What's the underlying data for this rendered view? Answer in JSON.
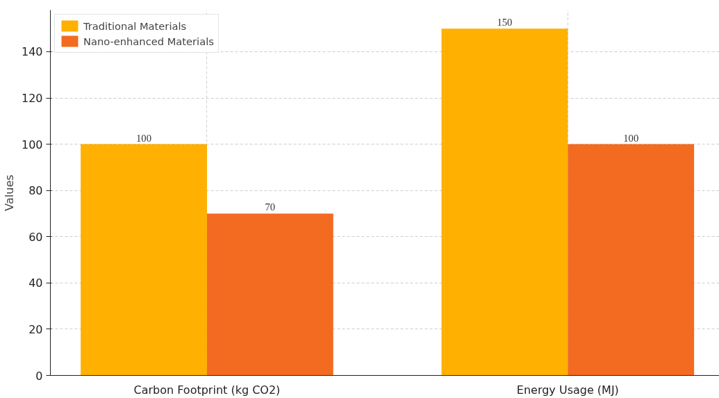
{
  "chart_data": {
    "type": "bar",
    "ylabel": "Values",
    "categories": [
      "Carbon Footprint (kg CO2)",
      "Energy Usage (MJ)"
    ],
    "series": [
      {
        "name": "Traditional Materials",
        "color": "#ffb000",
        "values": [
          100,
          150
        ]
      },
      {
        "name": "Nano-enhanced Materials",
        "color": "#f26b21",
        "values": [
          70,
          100
        ]
      }
    ],
    "ylim": [
      0,
      158
    ],
    "yticks": [
      0,
      20,
      40,
      60,
      80,
      100,
      120,
      140
    ],
    "grid": true,
    "legend": "top left",
    "data_labels": true
  }
}
